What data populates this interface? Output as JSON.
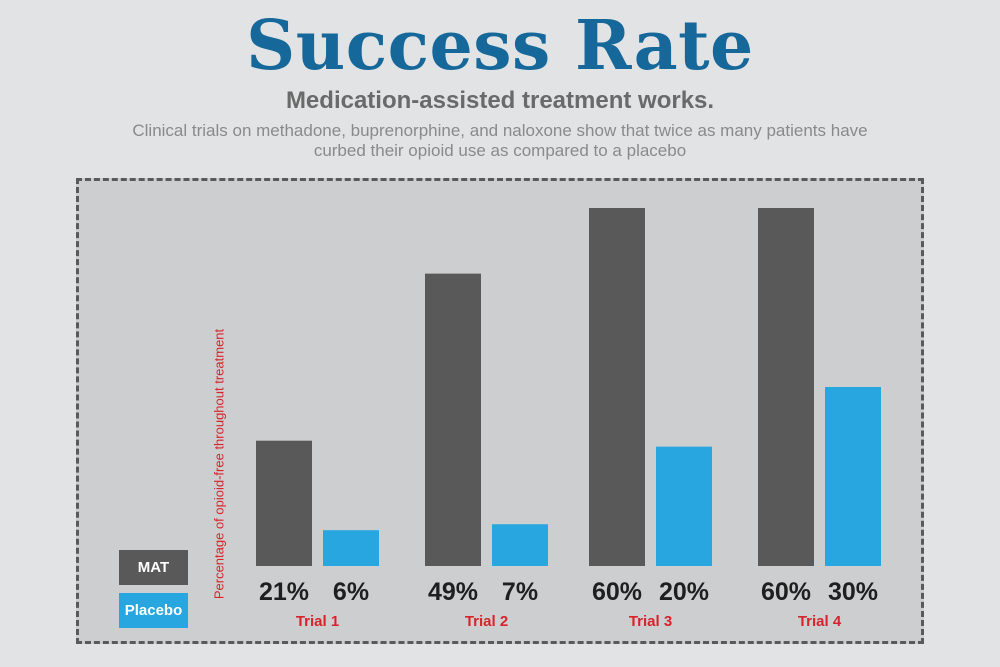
{
  "header": {
    "title": "Success Rate",
    "subtitle": "Medication-assisted treatment works.",
    "description": "Clinical trials on methadone, buprenorphine, and naloxone show that twice as many patients have curbed their opioid use as compared to a placebo"
  },
  "colors": {
    "title": "#16689a",
    "mat": "#595959",
    "placebo": "#27a6e0",
    "trial_label": "#d8232a",
    "value_label": "#1f1f1f"
  },
  "chart_data": {
    "type": "bar",
    "title": "Success Rate",
    "xlabel": "",
    "ylabel": "Percentage of opioid-free throughout treatment",
    "categories": [
      "Trial 1",
      "Trial 2",
      "Trial 3",
      "Trial 4"
    ],
    "series": [
      {
        "name": "MAT",
        "values": [
          21,
          49,
          60,
          60
        ],
        "labels": [
          "21%",
          "49%",
          "60%",
          "60%"
        ]
      },
      {
        "name": "Placebo",
        "values": [
          6,
          7,
          20,
          30
        ],
        "labels": [
          "6%",
          "7%",
          "20%",
          "30%"
        ]
      }
    ],
    "ylim": [
      0,
      60
    ],
    "grid": false,
    "legend": "bottom-left"
  }
}
